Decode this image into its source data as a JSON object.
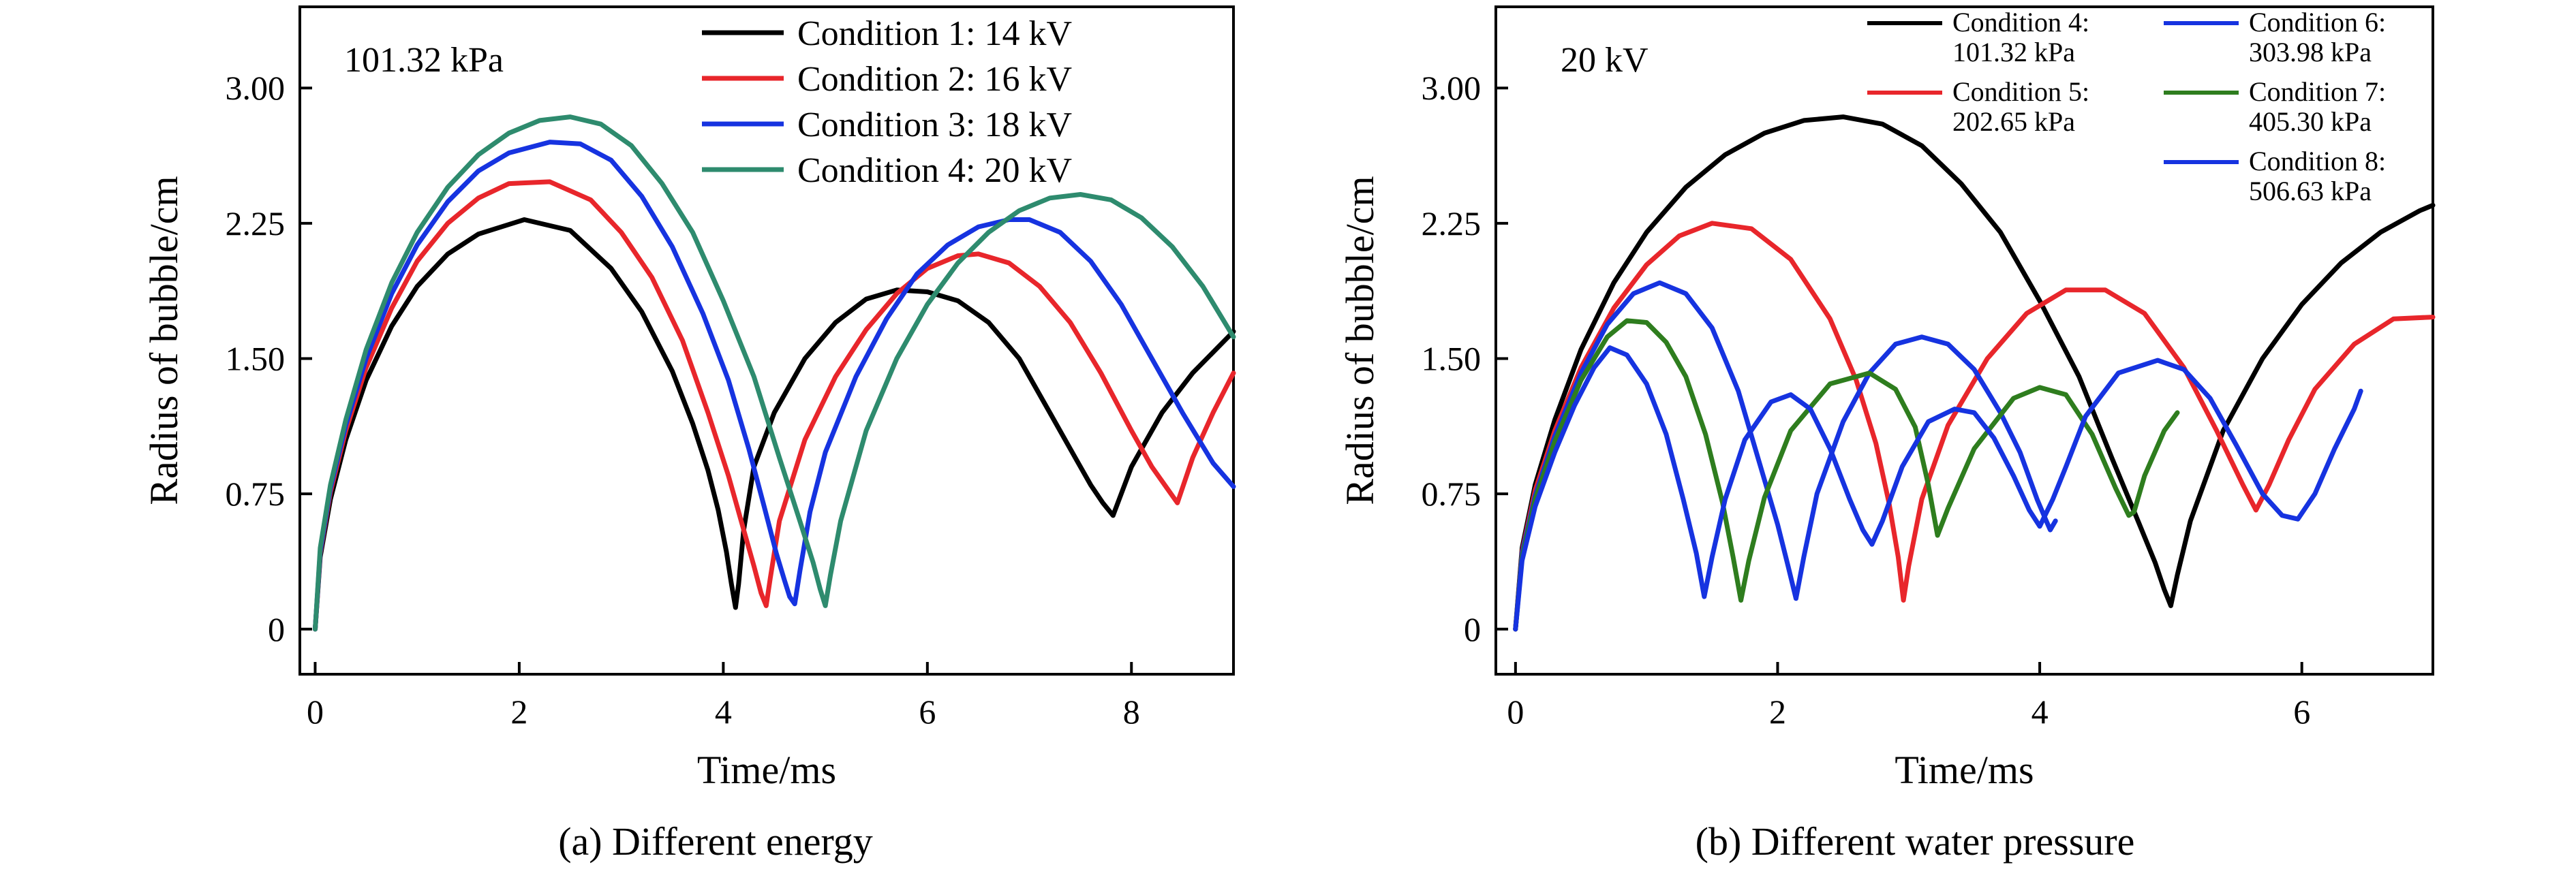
{
  "figure": {
    "captions": [
      "(a) Different energy",
      "(b) Different water pressure"
    ]
  },
  "chart_data": [
    {
      "type": "line",
      "caption": "(a) Different energy",
      "annotation": "101.32 kPa",
      "xlabel": "Time/ms",
      "ylabel": "Radius of bubble/cm",
      "xlim": [
        -0.15,
        9.0
      ],
      "ylim": [
        -0.25,
        3.45
      ],
      "xticks": [
        0,
        2,
        4,
        6,
        8
      ],
      "xtick_labels": [
        "0",
        "2",
        "4",
        "6",
        "8"
      ],
      "yticks": [
        0,
        0.75,
        1.5,
        2.25,
        3.0
      ],
      "ytick_labels": [
        "0",
        "0.75",
        "1.50",
        "2.25",
        "3.00"
      ],
      "grid": false,
      "legend": {
        "position": "top-right",
        "columns": 1
      },
      "series": [
        {
          "name": "Condition 1: 14 kV",
          "color": "#000000",
          "x": [
            0.0,
            0.05,
            0.15,
            0.3,
            0.5,
            0.75,
            1.0,
            1.3,
            1.6,
            2.05,
            2.5,
            2.9,
            3.2,
            3.5,
            3.7,
            3.85,
            3.95,
            4.03,
            4.08,
            4.12,
            4.15,
            4.2,
            4.3,
            4.5,
            4.8,
            5.1,
            5.4,
            5.7,
            6.0,
            6.3,
            6.6,
            6.9,
            7.2,
            7.45,
            7.6,
            7.72,
            7.82,
            8.0,
            8.3,
            8.6,
            9.0
          ],
          "y": [
            0.0,
            0.4,
            0.72,
            1.05,
            1.38,
            1.68,
            1.9,
            2.08,
            2.19,
            2.27,
            2.21,
            2.0,
            1.76,
            1.43,
            1.14,
            0.88,
            0.66,
            0.43,
            0.25,
            0.12,
            0.25,
            0.55,
            0.9,
            1.2,
            1.5,
            1.7,
            1.83,
            1.88,
            1.87,
            1.82,
            1.7,
            1.5,
            1.2,
            0.95,
            0.8,
            0.7,
            0.63,
            0.9,
            1.2,
            1.42,
            1.65
          ]
        },
        {
          "name": "Condition 2: 16 kV",
          "color": "#e8262b",
          "x": [
            0.0,
            0.05,
            0.15,
            0.3,
            0.5,
            0.75,
            1.0,
            1.3,
            1.6,
            1.9,
            2.3,
            2.7,
            3.0,
            3.3,
            3.6,
            3.85,
            4.05,
            4.2,
            4.3,
            4.37,
            4.42,
            4.46,
            4.55,
            4.8,
            5.1,
            5.4,
            5.7,
            6.0,
            6.3,
            6.5,
            6.8,
            7.1,
            7.4,
            7.7,
            8.0,
            8.2,
            8.35,
            8.45,
            8.6,
            8.8,
            9.0
          ],
          "y": [
            0.0,
            0.42,
            0.76,
            1.1,
            1.45,
            1.78,
            2.04,
            2.25,
            2.39,
            2.47,
            2.48,
            2.38,
            2.2,
            1.95,
            1.6,
            1.2,
            0.85,
            0.55,
            0.35,
            0.2,
            0.13,
            0.28,
            0.6,
            1.05,
            1.4,
            1.66,
            1.86,
            2.0,
            2.07,
            2.08,
            2.03,
            1.9,
            1.7,
            1.42,
            1.1,
            0.9,
            0.78,
            0.7,
            0.95,
            1.2,
            1.42
          ]
        },
        {
          "name": "Condition 3: 18 kV",
          "color": "#1633e0",
          "x": [
            0.0,
            0.05,
            0.15,
            0.3,
            0.5,
            0.75,
            1.0,
            1.3,
            1.6,
            1.9,
            2.3,
            2.6,
            2.9,
            3.2,
            3.5,
            3.8,
            4.05,
            4.25,
            4.4,
            4.52,
            4.6,
            4.65,
            4.7,
            4.75,
            4.85,
            5.0,
            5.3,
            5.6,
            5.9,
            6.2,
            6.5,
            6.8,
            7.0,
            7.3,
            7.6,
            7.9,
            8.2,
            8.5,
            8.8,
            9.0
          ],
          "y": [
            0.0,
            0.43,
            0.78,
            1.13,
            1.5,
            1.86,
            2.13,
            2.37,
            2.54,
            2.64,
            2.7,
            2.69,
            2.6,
            2.4,
            2.12,
            1.75,
            1.38,
            1.0,
            0.68,
            0.42,
            0.27,
            0.18,
            0.14,
            0.32,
            0.65,
            0.98,
            1.4,
            1.72,
            1.97,
            2.13,
            2.23,
            2.27,
            2.27,
            2.2,
            2.04,
            1.8,
            1.5,
            1.2,
            0.92,
            0.79
          ]
        },
        {
          "name": "Condition 4: 20 kV",
          "color": "#2e8b6e",
          "x": [
            0.0,
            0.05,
            0.15,
            0.3,
            0.5,
            0.75,
            1.0,
            1.3,
            1.6,
            1.9,
            2.2,
            2.5,
            2.8,
            3.1,
            3.4,
            3.7,
            4.0,
            4.3,
            4.55,
            4.75,
            4.88,
            4.95,
            5.0,
            5.05,
            5.15,
            5.4,
            5.7,
            6.0,
            6.3,
            6.6,
            6.9,
            7.2,
            7.5,
            7.8,
            8.1,
            8.4,
            8.7,
            9.0
          ],
          "y": [
            0.0,
            0.45,
            0.8,
            1.16,
            1.55,
            1.92,
            2.2,
            2.45,
            2.63,
            2.75,
            2.82,
            2.84,
            2.8,
            2.68,
            2.47,
            2.2,
            1.82,
            1.4,
            0.95,
            0.6,
            0.37,
            0.22,
            0.13,
            0.3,
            0.6,
            1.1,
            1.5,
            1.8,
            2.03,
            2.2,
            2.32,
            2.39,
            2.41,
            2.38,
            2.28,
            2.12,
            1.9,
            1.62
          ]
        }
      ]
    },
    {
      "type": "line",
      "caption": "(b) Different water pressure",
      "annotation": "20 kV",
      "xlabel": "Time/ms",
      "ylabel": "Radius of bubble/cm",
      "xlim": [
        -0.15,
        7.0
      ],
      "ylim": [
        -0.25,
        3.45
      ],
      "xticks": [
        0,
        2,
        4,
        6
      ],
      "xtick_labels": [
        "0",
        "2",
        "4",
        "6"
      ],
      "yticks": [
        0,
        0.75,
        1.5,
        2.25,
        3.0
      ],
      "ytick_labels": [
        "0",
        "0.75",
        "1.50",
        "2.25",
        "3.00"
      ],
      "grid": false,
      "legend": {
        "position": "top-right",
        "columns": 2
      },
      "series": [
        {
          "name": "Condition 4: 101.32 kPa",
          "name_lines": [
            "Condition 4:",
            "101.32 kPa"
          ],
          "color": "#000000",
          "x": [
            0.0,
            0.05,
            0.15,
            0.3,
            0.5,
            0.75,
            1.0,
            1.3,
            1.6,
            1.9,
            2.2,
            2.5,
            2.8,
            3.1,
            3.4,
            3.7,
            4.0,
            4.3,
            4.55,
            4.75,
            4.88,
            4.95,
            5.0,
            5.05,
            5.15,
            5.4,
            5.7,
            6.0,
            6.3,
            6.6,
            6.9,
            7.0
          ],
          "y": [
            0.0,
            0.45,
            0.8,
            1.16,
            1.55,
            1.92,
            2.2,
            2.45,
            2.63,
            2.75,
            2.82,
            2.84,
            2.8,
            2.68,
            2.47,
            2.2,
            1.82,
            1.4,
            0.95,
            0.6,
            0.37,
            0.22,
            0.13,
            0.3,
            0.6,
            1.1,
            1.5,
            1.8,
            2.03,
            2.2,
            2.32,
            2.35
          ]
        },
        {
          "name": "Condition 5: 202.65 kPa",
          "name_lines": [
            "Condition 5:",
            "202.65 kPa"
          ],
          "color": "#e8262b",
          "x": [
            0.0,
            0.05,
            0.15,
            0.3,
            0.5,
            0.75,
            1.0,
            1.25,
            1.5,
            1.8,
            2.1,
            2.4,
            2.6,
            2.75,
            2.85,
            2.92,
            2.96,
            3.0,
            3.1,
            3.3,
            3.6,
            3.9,
            4.2,
            4.5,
            4.8,
            5.1,
            5.35,
            5.55,
            5.65,
            5.75,
            5.9,
            6.1,
            6.4,
            6.7,
            7.0
          ],
          "y": [
            0.0,
            0.43,
            0.77,
            1.1,
            1.45,
            1.78,
            2.02,
            2.18,
            2.25,
            2.22,
            2.05,
            1.72,
            1.38,
            1.03,
            0.7,
            0.4,
            0.16,
            0.35,
            0.72,
            1.13,
            1.5,
            1.75,
            1.88,
            1.88,
            1.75,
            1.45,
            1.1,
            0.8,
            0.66,
            0.8,
            1.05,
            1.33,
            1.58,
            1.72,
            1.73
          ]
        },
        {
          "name": "Condition 6: 303.98 kPa",
          "name_lines": [
            "Condition 6:",
            "303.98 kPa"
          ],
          "color": "#1633e0",
          "x": [
            0.0,
            0.05,
            0.15,
            0.3,
            0.5,
            0.7,
            0.9,
            1.1,
            1.3,
            1.5,
            1.7,
            1.85,
            2.0,
            2.08,
            2.14,
            2.2,
            2.3,
            2.5,
            2.7,
            2.9,
            3.1,
            3.3,
            3.5,
            3.7,
            3.85,
            3.98,
            4.05,
            4.08,
            4.12
          ],
          "y": [
            0.0,
            0.42,
            0.74,
            1.07,
            1.42,
            1.69,
            1.86,
            1.92,
            1.86,
            1.67,
            1.32,
            0.95,
            0.58,
            0.35,
            0.17,
            0.4,
            0.75,
            1.15,
            1.42,
            1.58,
            1.62,
            1.58,
            1.44,
            1.2,
            0.98,
            0.72,
            0.6,
            0.55,
            0.6
          ]
        },
        {
          "name": "Condition 7: 405.30 kPa",
          "name_lines": [
            "Condition 7:",
            "405.30 kPa"
          ],
          "color": "#2e7d1e",
          "x": [
            0.0,
            0.05,
            0.15,
            0.3,
            0.5,
            0.7,
            0.85,
            1.0,
            1.15,
            1.3,
            1.45,
            1.58,
            1.66,
            1.72,
            1.78,
            1.9,
            2.1,
            2.4,
            2.7,
            2.9,
            3.05,
            3.15,
            3.22,
            3.3,
            3.5,
            3.8,
            4.0,
            4.2,
            4.4,
            4.58,
            4.68,
            4.72,
            4.8,
            4.95,
            5.05
          ],
          "y": [
            0.0,
            0.4,
            0.72,
            1.04,
            1.38,
            1.62,
            1.71,
            1.7,
            1.59,
            1.4,
            1.08,
            0.7,
            0.4,
            0.16,
            0.38,
            0.73,
            1.1,
            1.36,
            1.42,
            1.33,
            1.12,
            0.8,
            0.52,
            0.67,
            1.0,
            1.28,
            1.34,
            1.3,
            1.08,
            0.78,
            0.63,
            0.65,
            0.85,
            1.1,
            1.2
          ]
        },
        {
          "name": "Condition 8: 506.63 kPa",
          "name_lines": [
            "Condition 8:",
            "506.63 kPa"
          ],
          "color": "#1633e0",
          "x": [
            0.0,
            0.05,
            0.15,
            0.3,
            0.45,
            0.6,
            0.72,
            0.85,
            1.0,
            1.15,
            1.28,
            1.38,
            1.44,
            1.5,
            1.6,
            1.75,
            1.95,
            2.1,
            2.25,
            2.4,
            2.55,
            2.65,
            2.72,
            2.8,
            2.95,
            3.15,
            3.35,
            3.5,
            3.65,
            3.8,
            3.92,
            4.0,
            4.1,
            4.2,
            4.35,
            4.6,
            4.9,
            5.1,
            5.3,
            5.5,
            5.7,
            5.85,
            5.97,
            6.1,
            6.25,
            6.4,
            6.45
          ],
          "y": [
            0.0,
            0.38,
            0.68,
            0.98,
            1.24,
            1.45,
            1.56,
            1.52,
            1.36,
            1.08,
            0.72,
            0.42,
            0.18,
            0.4,
            0.72,
            1.05,
            1.26,
            1.3,
            1.22,
            1.0,
            0.72,
            0.55,
            0.47,
            0.6,
            0.9,
            1.15,
            1.22,
            1.2,
            1.06,
            0.85,
            0.66,
            0.57,
            0.72,
            0.9,
            1.18,
            1.42,
            1.49,
            1.44,
            1.28,
            1.02,
            0.75,
            0.63,
            0.61,
            0.75,
            1.0,
            1.22,
            1.32
          ]
        }
      ]
    }
  ]
}
